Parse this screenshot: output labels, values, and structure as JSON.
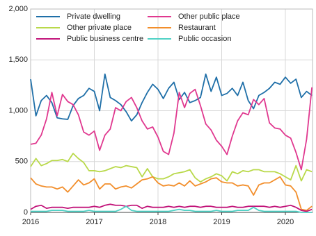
{
  "chart_data": {
    "type": "line",
    "categories": [
      "2016",
      null,
      null,
      null,
      null,
      null,
      null,
      null,
      null,
      null,
      null,
      null,
      "2017",
      null,
      null,
      null,
      null,
      null,
      null,
      null,
      null,
      null,
      null,
      null,
      "2018",
      null,
      null,
      null,
      null,
      null,
      null,
      null,
      null,
      null,
      null,
      null,
      "2019",
      null,
      null,
      null,
      null,
      null,
      null,
      null,
      null,
      null,
      null,
      null,
      "2020",
      null,
      null,
      null,
      null,
      null
    ],
    "ylim": [
      0,
      2000
    ],
    "yticks": [
      0,
      500,
      {
        "value": 1000,
        "label": "1,000"
      },
      {
        "value": 1500,
        "label": "1,500"
      },
      {
        "value": 2000,
        "label": "2,000"
      }
    ],
    "grid": true,
    "series": [
      {
        "name": "Private dwelling",
        "color": "#1f6fa8",
        "values": [
          1310,
          950,
          1100,
          1150,
          1080,
          930,
          920,
          915,
          1050,
          1120,
          1150,
          1220,
          1190,
          1000,
          1360,
          1130,
          1100,
          1060,
          990,
          900,
          960,
          1080,
          1180,
          1260,
          1210,
          1120,
          1220,
          1280,
          1110,
          1180,
          1080,
          1100,
          1130,
          1360,
          1190,
          1330,
          1150,
          1170,
          1220,
          1150,
          1280,
          1100,
          1020,
          1150,
          1180,
          1220,
          1280,
          1260,
          1330,
          1270,
          1310,
          1130,
          1190,
          1150
        ]
      },
      {
        "name": "Other public place",
        "color": "#e0388f",
        "values": [
          670,
          680,
          760,
          920,
          1180,
          950,
          1160,
          1090,
          1060,
          960,
          790,
          760,
          800,
          610,
          760,
          820,
          1030,
          1000,
          1090,
          1130,
          1030,
          900,
          820,
          840,
          740,
          600,
          570,
          780,
          1180,
          1030,
          1170,
          1210,
          1050,
          870,
          810,
          710,
          650,
          570,
          750,
          900,
          980,
          960,
          1110,
          1060,
          1120,
          880,
          830,
          820,
          760,
          730,
          590,
          420,
          720,
          1230
        ]
      },
      {
        "name": "Other private place",
        "color": "#b9d94a",
        "values": [
          450,
          530,
          460,
          480,
          510,
          510,
          520,
          500,
          580,
          530,
          490,
          410,
          410,
          400,
          410,
          430,
          450,
          440,
          460,
          450,
          440,
          350,
          430,
          350,
          330,
          330,
          350,
          380,
          390,
          400,
          420,
          340,
          300,
          330,
          350,
          380,
          360,
          310,
          400,
          380,
          410,
          400,
          420,
          420,
          400,
          400,
          400,
          380,
          350,
          320,
          460,
          310,
          420,
          400
        ]
      },
      {
        "name": "Restaurant",
        "color": "#f28e2b",
        "values": [
          340,
          280,
          260,
          250,
          250,
          230,
          250,
          200,
          260,
          320,
          270,
          290,
          330,
          230,
          280,
          280,
          230,
          250,
          260,
          240,
          280,
          320,
          330,
          350,
          290,
          260,
          270,
          260,
          290,
          260,
          310,
          260,
          280,
          300,
          330,
          340,
          300,
          290,
          290,
          260,
          270,
          260,
          170,
          270,
          290,
          290,
          320,
          350,
          270,
          260,
          200,
          30,
          20,
          60
        ]
      },
      {
        "name": "Public business centre",
        "color": "#c2157a",
        "values": [
          30,
          60,
          70,
          40,
          50,
          50,
          50,
          40,
          50,
          50,
          50,
          50,
          60,
          50,
          70,
          80,
          70,
          70,
          60,
          70,
          70,
          40,
          60,
          50,
          50,
          50,
          60,
          50,
          60,
          50,
          60,
          60,
          50,
          60,
          60,
          50,
          50,
          50,
          60,
          50,
          50,
          60,
          60,
          60,
          60,
          50,
          60,
          50,
          60,
          70,
          50,
          20,
          10,
          30
        ]
      },
      {
        "name": "Public occasion",
        "color": "#4fd1c5",
        "values": [
          10,
          10,
          10,
          10,
          20,
          20,
          20,
          10,
          10,
          10,
          10,
          20,
          10,
          10,
          10,
          10,
          10,
          30,
          60,
          20,
          10,
          10,
          10,
          10,
          10,
          10,
          10,
          20,
          30,
          20,
          20,
          10,
          10,
          10,
          10,
          20,
          10,
          10,
          10,
          20,
          20,
          20,
          50,
          20,
          10,
          10,
          10,
          10,
          10,
          10,
          10,
          0,
          0,
          0
        ]
      }
    ]
  }
}
